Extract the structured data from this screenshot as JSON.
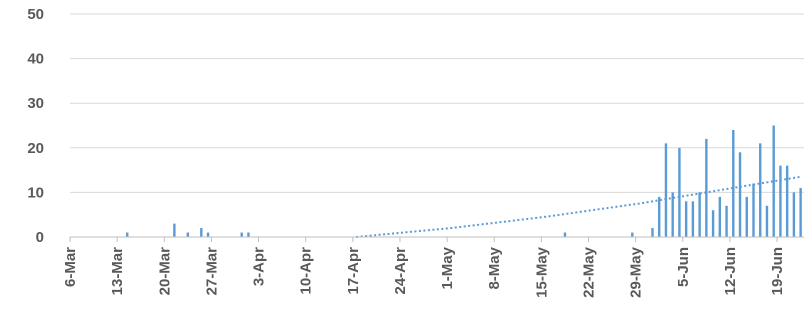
{
  "chart_data": {
    "type": "bar",
    "title": "",
    "xlabel": "",
    "ylabel": "",
    "ylim": [
      0,
      50
    ],
    "yticks": [
      0,
      10,
      20,
      30,
      40,
      50
    ],
    "x_start": "6-Mar",
    "x_end": "22-Jun",
    "xtick_labels": [
      "6-Mar",
      "13-Mar",
      "20-Mar",
      "27-Mar",
      "3-Apr",
      "10-Apr",
      "17-Apr",
      "24-Apr",
      "1-May",
      "8-May",
      "15-May",
      "22-May",
      "29-May",
      "5-Jun",
      "12-Jun",
      "19-Jun"
    ],
    "grid": true,
    "legend": "none",
    "bar_color": "#5b9bd5",
    "series": [
      {
        "values": [
          {
            "x": "14-Mar",
            "y": 1
          },
          {
            "x": "21-Mar",
            "y": 3
          },
          {
            "x": "23-Mar",
            "y": 1
          },
          {
            "x": "25-Mar",
            "y": 2
          },
          {
            "x": "26-Mar",
            "y": 1
          },
          {
            "x": "31-Mar",
            "y": 1
          },
          {
            "x": "1-Apr",
            "y": 1
          },
          {
            "x": "18-May",
            "y": 1
          },
          {
            "x": "28-May",
            "y": 1
          },
          {
            "x": "31-May",
            "y": 2
          },
          {
            "x": "1-Jun",
            "y": 9
          },
          {
            "x": "2-Jun",
            "y": 21
          },
          {
            "x": "3-Jun",
            "y": 10
          },
          {
            "x": "4-Jun",
            "y": 20
          },
          {
            "x": "5-Jun",
            "y": 8
          },
          {
            "x": "6-Jun",
            "y": 8
          },
          {
            "x": "7-Jun",
            "y": 10
          },
          {
            "x": "8-Jun",
            "y": 22
          },
          {
            "x": "9-Jun",
            "y": 6
          },
          {
            "x": "10-Jun",
            "y": 9
          },
          {
            "x": "11-Jun",
            "y": 7
          },
          {
            "x": "12-Jun",
            "y": 24
          },
          {
            "x": "13-Jun",
            "y": 19
          },
          {
            "x": "14-Jun",
            "y": 9
          },
          {
            "x": "15-Jun",
            "y": 12
          },
          {
            "x": "16-Jun",
            "y": 21
          },
          {
            "x": "17-Jun",
            "y": 7
          },
          {
            "x": "18-Jun",
            "y": 25
          },
          {
            "x": "19-Jun",
            "y": 16
          },
          {
            "x": "20-Jun",
            "y": 16
          },
          {
            "x": "21-Jun",
            "y": 10
          },
          {
            "x": "22-Jun",
            "y": 11
          }
        ]
      }
    ],
    "trendline": {
      "style": "dotted",
      "color": "#5b9bd5",
      "points": [
        {
          "x": "17-Apr",
          "y": 0
        },
        {
          "x": "1-May",
          "y": 2
        },
        {
          "x": "15-May",
          "y": 4.5
        },
        {
          "x": "29-May",
          "y": 7.5
        },
        {
          "x": "12-Jun",
          "y": 11
        },
        {
          "x": "22-Jun",
          "y": 13.5
        }
      ]
    }
  }
}
